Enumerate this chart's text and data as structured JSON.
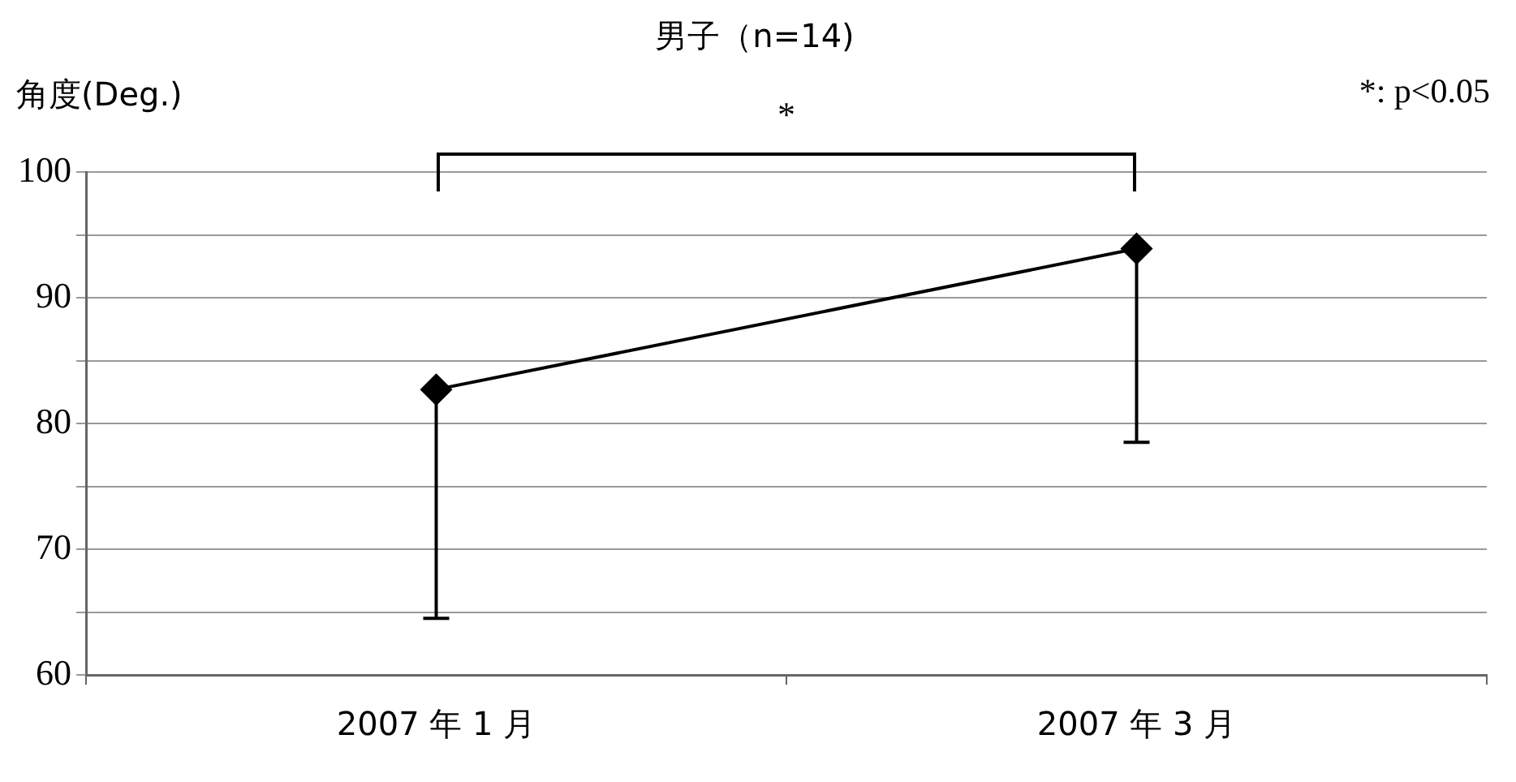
{
  "chart_data": {
    "type": "line",
    "title": "男子（n=14)",
    "ylabel": "角度(Deg.)",
    "categories": [
      "2007 年 1 月",
      "2007 年 3 月"
    ],
    "series": [
      {
        "color": "#000000",
        "values": [
          82.7,
          93.9
        ],
        "errors": [
          [
            64.5,
            82.7
          ],
          [
            78.5,
            93.9
          ]
        ]
      }
    ],
    "ylim": [
      60,
      100
    ],
    "yticks": [
      60,
      {
        "value": 65,
        "label": null
      },
      70,
      {
        "value": 75,
        "label": null
      },
      80,
      {
        "value": 85,
        "label": null
      },
      90,
      {
        "value": 95,
        "label": null
      },
      100
    ],
    "grid": "y",
    "legend": false,
    "marker": "diamond",
    "line_style": "solid",
    "annotations": [
      "*",
      "*: p<0.05"
    ]
  }
}
